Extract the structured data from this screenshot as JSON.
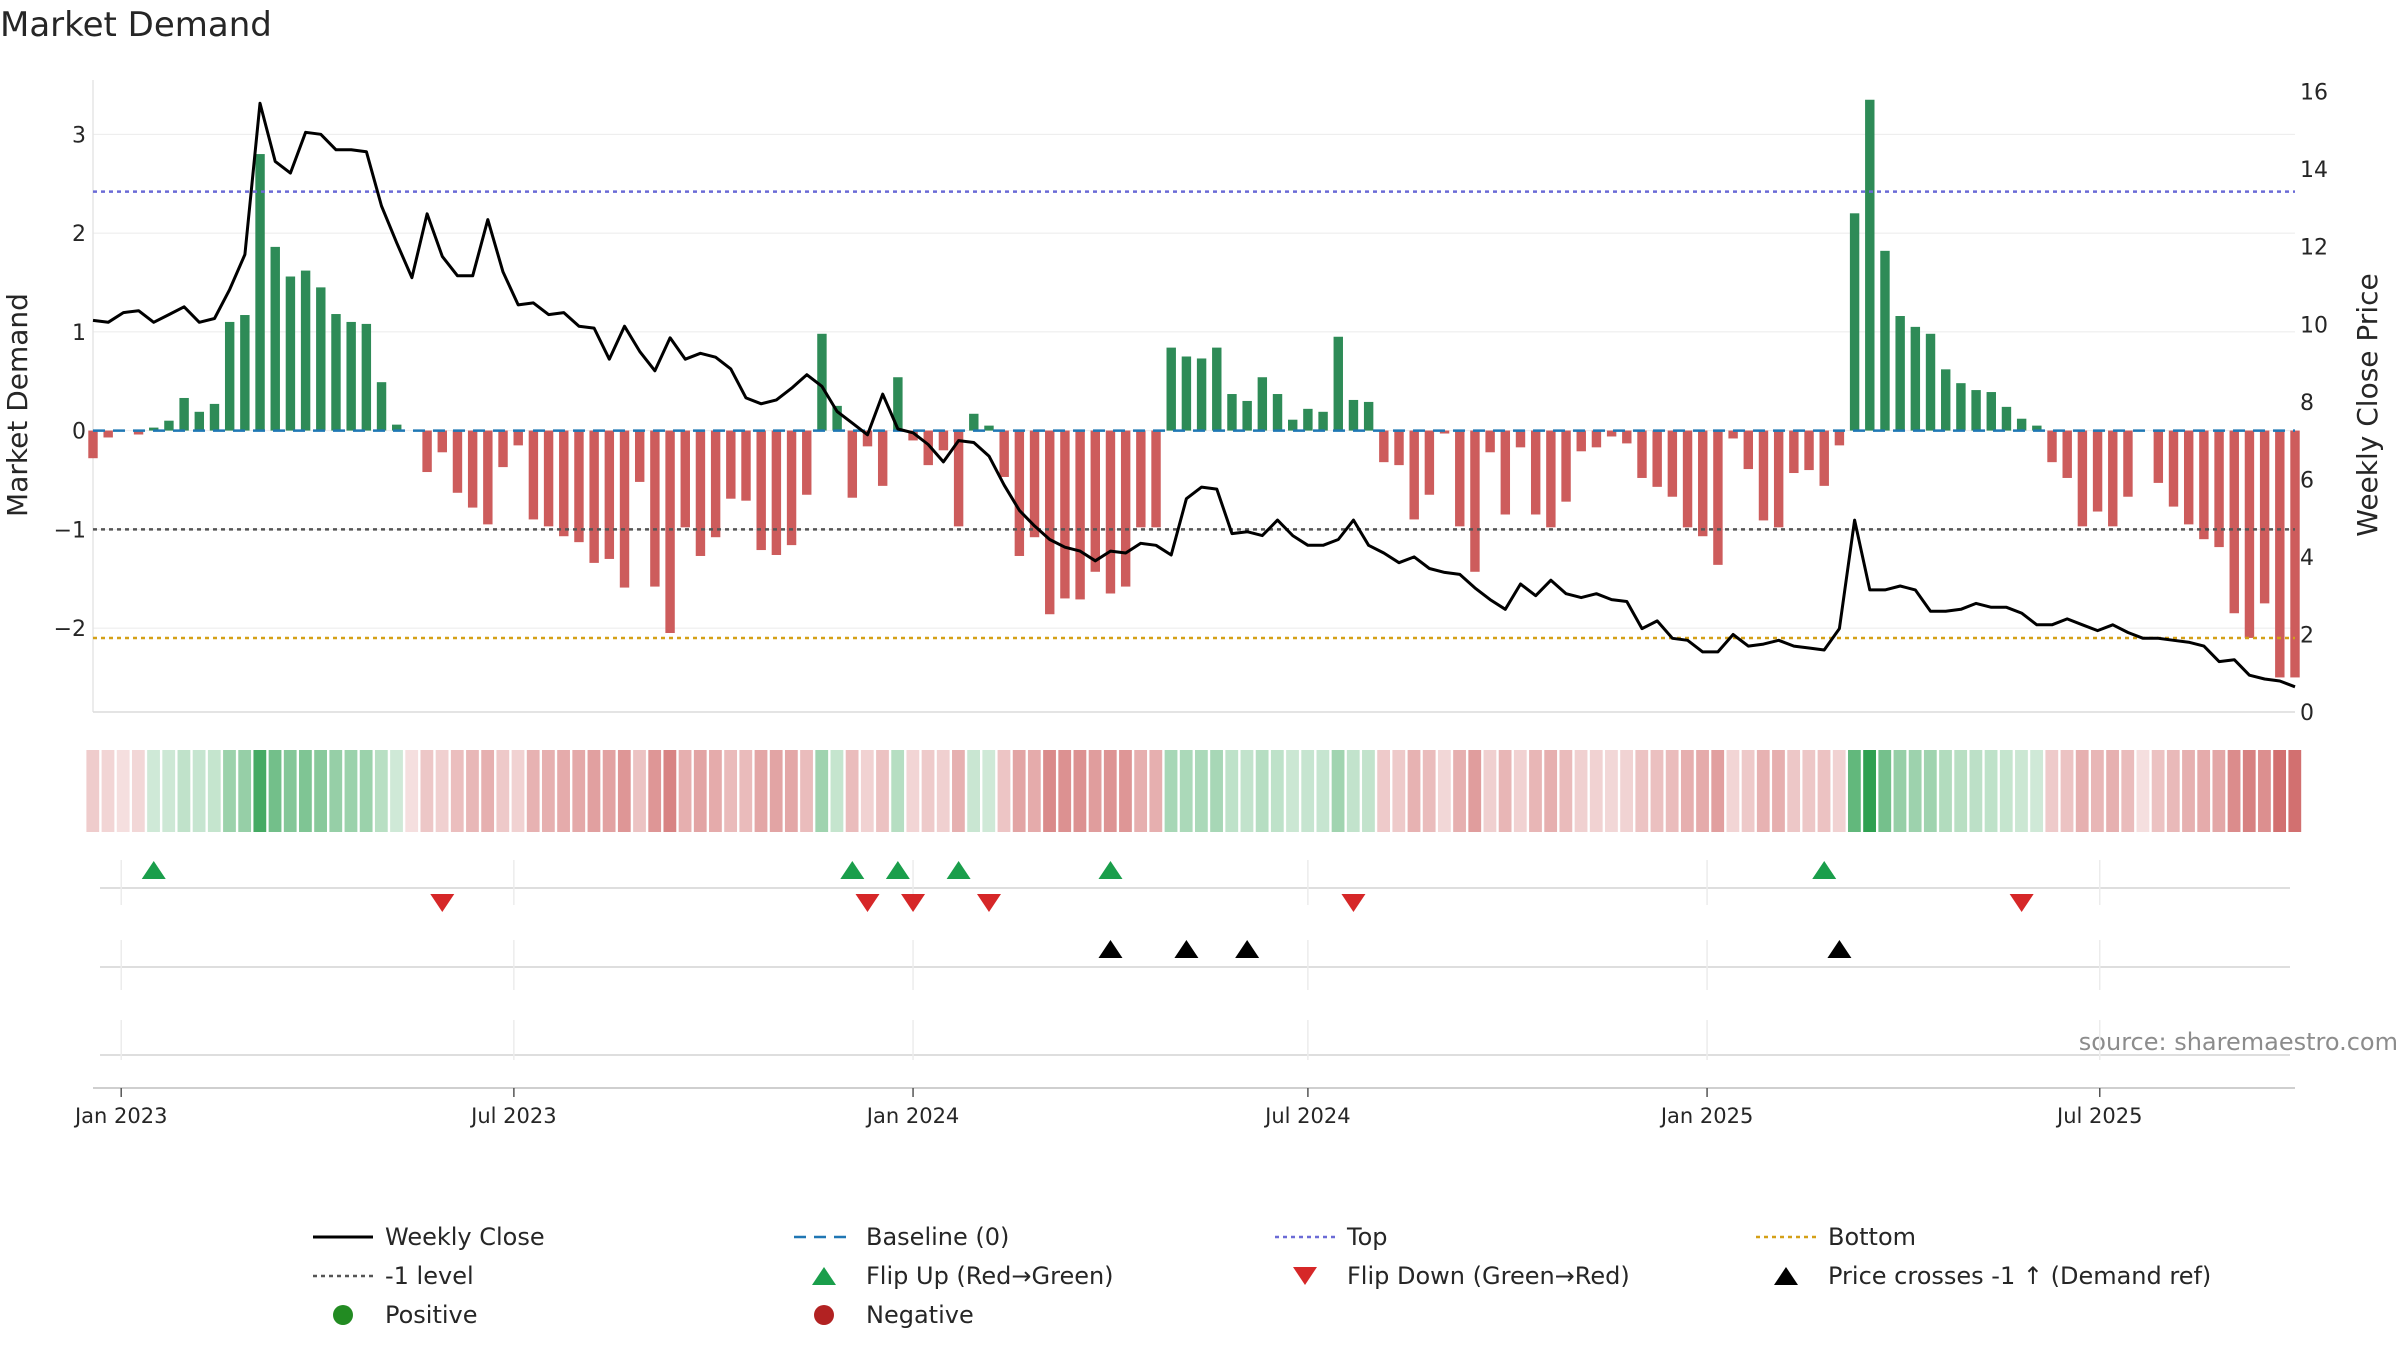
{
  "chart_data": {
    "type": "bar",
    "title": "Market Demand",
    "ylabel": "Market Demand",
    "y2label": "Weekly Close Price",
    "source": "source: sharemaestro.com",
    "ylim": [
      -2.85,
      3.55
    ],
    "y2lim": [
      0,
      16.3
    ],
    "yticks": [
      3,
      2,
      1,
      0,
      -1,
      -2
    ],
    "y2ticks": [
      16,
      14,
      12,
      10,
      8,
      6,
      4,
      2,
      0
    ],
    "x_start": "2022-12-19",
    "x_end": "2025-09-29",
    "x_ticks": [
      {
        "label": "Jan 2023",
        "date": "2023-01-01"
      },
      {
        "label": "Jul 2023",
        "date": "2023-07-01"
      },
      {
        "label": "Jan 2024",
        "date": "2024-01-01"
      },
      {
        "label": "Jul 2024",
        "date": "2024-07-01"
      },
      {
        "label": "Jan 2025",
        "date": "2025-01-01"
      },
      {
        "label": "Jul 2025",
        "date": "2025-07-01"
      }
    ],
    "reference_lines": {
      "baseline": 0,
      "top": 2.42,
      "minus_one": -1.0,
      "bottom": -2.1
    },
    "colors": {
      "positive": "#2e8b57",
      "negative": "#cd5c5c",
      "price": "#000000",
      "baseline": "#1f77b4",
      "top": "#6b6bd6",
      "minus_one": "#555555",
      "bottom": "#d4a017",
      "flip_up": "#1a9e4b",
      "flip_down": "#d62728",
      "cross": "#000000"
    },
    "start_week": "2022-12-19",
    "demand": [
      -0.28,
      -0.07,
      0,
      -0.04,
      0.03,
      0.1,
      0.33,
      0.19,
      0.27,
      1.1,
      1.17,
      2.8,
      1.86,
      1.56,
      1.62,
      1.45,
      1.18,
      1.1,
      1.08,
      0.49,
      0.06,
      0,
      -0.42,
      -0.22,
      -0.63,
      -0.78,
      -0.95,
      -0.37,
      -0.15,
      -0.9,
      -0.97,
      -1.07,
      -1.13,
      -1.34,
      -1.3,
      -1.59,
      -0.52,
      -1.58,
      -2.05,
      -0.98,
      -1.27,
      -1.08,
      -0.69,
      -0.71,
      -1.21,
      -1.26,
      -1.16,
      -0.65,
      0.98,
      0.25,
      -0.68,
      -0.16,
      -0.56,
      0.54,
      -0.1,
      -0.35,
      -0.2,
      -0.97,
      0.17,
      0.05,
      -0.47,
      -1.27,
      -1.08,
      -1.86,
      -1.7,
      -1.71,
      -1.43,
      -1.65,
      -1.58,
      -0.98,
      -0.98,
      0.84,
      0.75,
      0.73,
      0.84,
      0.37,
      0.3,
      0.54,
      0.37,
      0.11,
      0.22,
      0.19,
      0.95,
      0.31,
      0.29,
      -0.32,
      -0.35,
      -0.9,
      -0.65,
      -0.03,
      -0.97,
      -1.43,
      -0.22,
      -0.85,
      -0.17,
      -0.85,
      -0.98,
      -0.72,
      -0.21,
      -0.17,
      -0.06,
      -0.13,
      -0.48,
      -0.57,
      -0.67,
      -0.98,
      -1.07,
      -1.36,
      -0.08,
      -0.39,
      -0.91,
      -0.98,
      -0.43,
      -0.4,
      -0.56,
      -0.15,
      2.2,
      3.35,
      1.82,
      1.16,
      1.05,
      0.98,
      0.62,
      0.48,
      0.41,
      0.39,
      0.24,
      0.12,
      0.05,
      -0.32,
      -0.48,
      -0.97,
      -0.82,
      -0.97,
      -0.67,
      0,
      -0.53,
      -0.77,
      -0.95,
      -1.1,
      -1.18,
      -1.85,
      -2.1,
      -1.75,
      -2.5,
      -2.5
    ],
    "price": [
      10.1,
      10.05,
      10.3,
      10.35,
      10.05,
      10.25,
      10.45,
      10.05,
      10.15,
      10.9,
      11.8,
      15.7,
      14.2,
      13.9,
      14.95,
      14.9,
      14.5,
      14.5,
      14.45,
      13.05,
      12.1,
      11.2,
      12.85,
      11.75,
      11.25,
      11.25,
      12.7,
      11.35,
      10.5,
      10.55,
      10.25,
      10.3,
      9.95,
      9.9,
      9.1,
      9.95,
      9.3,
      8.8,
      9.65,
      9.1,
      9.25,
      9.15,
      8.85,
      8.1,
      7.95,
      8.05,
      8.35,
      8.7,
      8.4,
      7.75,
      7.45,
      7.15,
      8.2,
      7.3,
      7.2,
      6.9,
      6.45,
      7.0,
      6.95,
      6.6,
      5.85,
      5.2,
      4.8,
      4.45,
      4.25,
      4.15,
      3.9,
      4.15,
      4.1,
      4.35,
      4.3,
      4.05,
      5.5,
      5.8,
      5.75,
      4.6,
      4.65,
      4.55,
      4.95,
      4.55,
      4.3,
      4.3,
      4.45,
      4.95,
      4.3,
      4.1,
      3.85,
      4.0,
      3.7,
      3.6,
      3.55,
      3.2,
      2.9,
      2.65,
      3.3,
      3.0,
      3.4,
      3.05,
      2.95,
      3.05,
      2.9,
      2.85,
      2.15,
      2.35,
      1.9,
      1.85,
      1.55,
      1.55,
      2.0,
      1.7,
      1.75,
      1.85,
      1.7,
      1.65,
      1.6,
      2.15,
      4.95,
      3.15,
      3.15,
      3.25,
      3.15,
      2.6,
      2.6,
      2.65,
      2.8,
      2.7,
      2.7,
      2.55,
      2.25,
      2.25,
      2.4,
      2.25,
      2.1,
      2.25,
      2.05,
      1.9,
      1.9,
      1.85,
      1.8,
      1.7,
      1.3,
      1.35,
      0.95,
      0.85,
      0.8,
      0.65
    ],
    "flip_up": [
      "2023-01-16",
      "2023-12-04",
      "2023-12-25",
      "2024-01-22",
      "2024-04-01",
      "2025-02-24"
    ],
    "flip_down": [
      "2023-05-29",
      "2023-12-11",
      "2024-01-01",
      "2024-02-05",
      "2024-07-22",
      "2025-05-26"
    ],
    "price_cross": [
      "2024-04-01",
      "2024-05-06",
      "2024-06-03",
      "2025-03-03"
    ]
  },
  "legend": [
    {
      "label": "Weekly Close",
      "kind": "solid-line",
      "color": "#000000"
    },
    {
      "label": "Baseline (0)",
      "kind": "dash-line",
      "color": "#1f77b4"
    },
    {
      "label": "Top",
      "kind": "dot-line",
      "color": "#6b6bd6"
    },
    {
      "label": "Bottom",
      "kind": "dot-line",
      "color": "#d4a017"
    },
    {
      "label": "-1 level",
      "kind": "dot-line",
      "color": "#555555"
    },
    {
      "label": "Flip Up (Red→Green)",
      "kind": "tri-up",
      "color": "#1a9e4b"
    },
    {
      "label": "Flip Down (Green→Red)",
      "kind": "tri-down",
      "color": "#d62728"
    },
    {
      "label": "Price crosses -1 ↑ (Demand ref)",
      "kind": "tri-up",
      "color": "#000000"
    },
    {
      "label": "Positive",
      "kind": "circle",
      "color": "#228b22"
    },
    {
      "label": "Negative",
      "kind": "circle",
      "color": "#b22222"
    }
  ]
}
